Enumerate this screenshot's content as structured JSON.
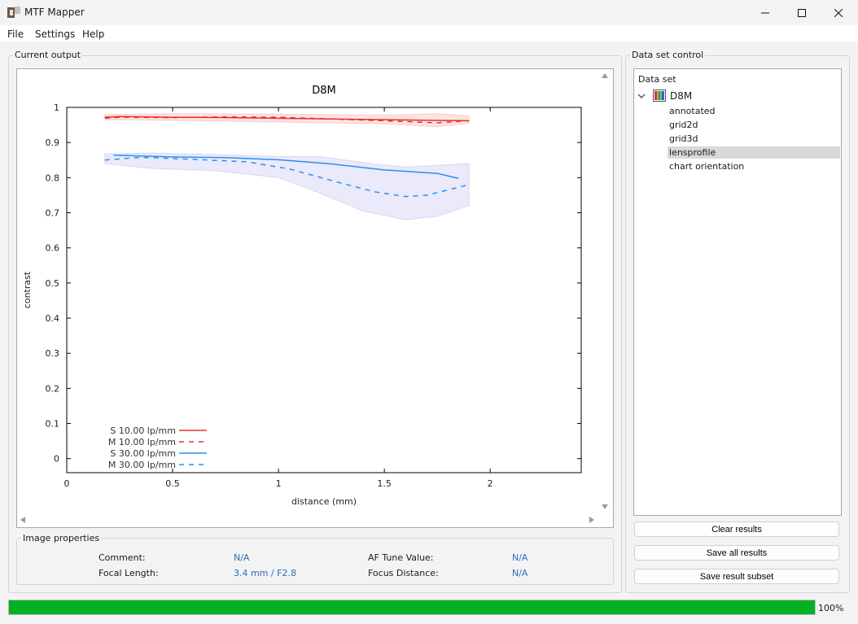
{
  "window": {
    "title": "MTF Mapper"
  },
  "menu": {
    "items": [
      "File",
      "Settings",
      "Help"
    ]
  },
  "current_output": {
    "label": "Current output"
  },
  "data_set_control": {
    "label": "Data set control",
    "tree_header": "Data set",
    "root": "D8M",
    "children": [
      "annotated",
      "grid2d",
      "grid3d",
      "lensprofile",
      "chart orientation"
    ],
    "selected": "lensprofile"
  },
  "buttons": {
    "clear": "Clear results",
    "save_all": "Save all results",
    "save_subset": "Save result subset"
  },
  "image_properties": {
    "label": "Image properties",
    "comment_label": "Comment:",
    "comment_value": "N/A",
    "af_label": "AF Tune Value:",
    "af_value": "N/A",
    "focal_label": "Focal Length:",
    "focal_value": "3.4 mm / F2.8",
    "focus_label": "Focus Distance:",
    "focus_value": "N/A"
  },
  "progress": {
    "value": 1.0,
    "label": "100%"
  },
  "colors": {
    "red": "#e8302a",
    "blue": "#2a8ff0",
    "progress": "#06b025"
  },
  "chart_data": {
    "type": "line",
    "title": "D8M",
    "xlabel": "distance (mm)",
    "ylabel": "contrast",
    "xlim": [
      0,
      2.43
    ],
    "ylim": [
      -0.04,
      1.0
    ],
    "xticks": [
      0,
      0.5,
      1,
      1.5,
      2
    ],
    "xtick_labels": [
      "0",
      "0.5",
      "1",
      "1.5",
      "2"
    ],
    "yticks": [
      0,
      0.1,
      0.2,
      0.3,
      0.4,
      0.5,
      0.6,
      0.7,
      0.8,
      0.9,
      1
    ],
    "ytick_labels": [
      "0",
      "0.1",
      "0.2",
      "0.3",
      "0.4",
      "0.5",
      "0.6",
      "0.7",
      "0.8",
      "0.9",
      "1"
    ],
    "legend_position": "bottom-left",
    "series": [
      {
        "name": "S 10.00 lp/mm",
        "color": "#e8302a",
        "dash": false,
        "x": [
          0.18,
          0.25,
          0.5,
          0.75,
          1.0,
          1.25,
          1.5,
          1.75,
          1.9
        ],
        "y": [
          0.972,
          0.974,
          0.972,
          0.971,
          0.969,
          0.967,
          0.965,
          0.963,
          0.962
        ]
      },
      {
        "name": "M 10.00 lp/mm",
        "color": "#e8302a",
        "dash": true,
        "x": [
          0.18,
          0.25,
          0.5,
          0.75,
          1.0,
          1.25,
          1.5,
          1.75,
          1.9
        ],
        "y": [
          0.969,
          0.972,
          0.971,
          0.973,
          0.972,
          0.967,
          0.962,
          0.956,
          0.962
        ]
      },
      {
        "name": "S 30.00 lp/mm",
        "color": "#2a8ff0",
        "dash": false,
        "x": [
          0.22,
          0.5,
          0.75,
          1.0,
          1.25,
          1.5,
          1.75,
          1.85
        ],
        "y": [
          0.864,
          0.859,
          0.857,
          0.851,
          0.839,
          0.822,
          0.812,
          0.798
        ]
      },
      {
        "name": "M 30.00 lp/mm",
        "color": "#2a8ff0",
        "dash": true,
        "x": [
          0.18,
          0.35,
          0.6,
          0.85,
          1.05,
          1.25,
          1.45,
          1.6,
          1.7,
          1.8,
          1.9
        ],
        "y": [
          0.85,
          0.858,
          0.852,
          0.845,
          0.825,
          0.792,
          0.76,
          0.746,
          0.75,
          0.765,
          0.78
        ]
      }
    ],
    "bands": [
      {
        "series": "S 10.00 lp/mm",
        "color": "#e8302a",
        "x": [
          0.18,
          0.5,
          1.0,
          1.5,
          1.75,
          1.9
        ],
        "upper": [
          0.98,
          0.982,
          0.981,
          0.978,
          0.982,
          0.976
        ],
        "lower": [
          0.965,
          0.963,
          0.958,
          0.953,
          0.945,
          0.955
        ]
      },
      {
        "series": "S 30.00 lp/mm",
        "color": "#5a5ae0",
        "x": [
          0.18,
          0.4,
          0.7,
          1.0,
          1.2,
          1.4,
          1.6,
          1.75,
          1.9
        ],
        "upper": [
          0.868,
          0.87,
          0.866,
          0.86,
          0.86,
          0.843,
          0.83,
          0.835,
          0.84
        ],
        "lower": [
          0.84,
          0.826,
          0.82,
          0.8,
          0.755,
          0.705,
          0.68,
          0.69,
          0.72
        ]
      }
    ]
  }
}
